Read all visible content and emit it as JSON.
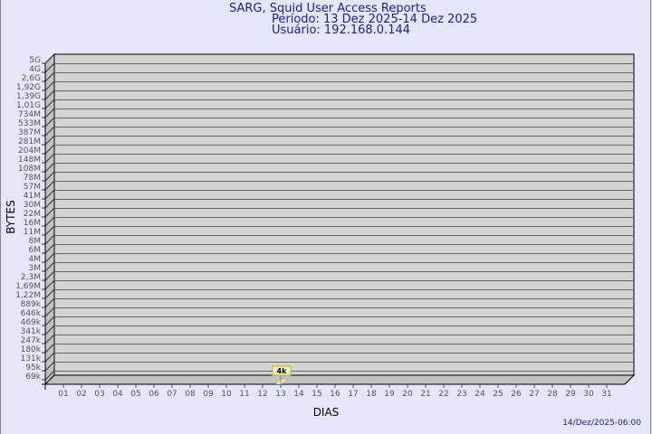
{
  "chart_data": {
    "type": "bar",
    "title": "SARG, Squid User Access Reports",
    "subtitle": [
      "Período: 13 Dez 2025-14 Dez 2025",
      "Usuário: 192.168.0.144"
    ],
    "xlabel": "DIAS",
    "ylabel": "BYTES",
    "y_scale": "log",
    "categories": [
      "01",
      "02",
      "03",
      "04",
      "05",
      "06",
      "07",
      "08",
      "09",
      "10",
      "11",
      "12",
      "13",
      "14",
      "15",
      "16",
      "17",
      "18",
      "19",
      "20",
      "21",
      "22",
      "23",
      "24",
      "25",
      "26",
      "27",
      "28",
      "29",
      "30",
      "31"
    ],
    "yticks": [
      "5G",
      "4G",
      "2,6G",
      "1,92G",
      "1,39G",
      "1,01G",
      "734M",
      "533M",
      "387M",
      "281M",
      "204M",
      "148M",
      "108M",
      "78M",
      "57M",
      "41M",
      "30M",
      "22M",
      "16M",
      "11M",
      "8M",
      "6M",
      "4M",
      "3M",
      "2,3M",
      "1,69M",
      "1,22M",
      "889k",
      "646k",
      "469k",
      "341k",
      "247k",
      "180k",
      "131k",
      "95k",
      "69k"
    ],
    "bars": [
      {
        "category": "13",
        "value": 4000,
        "label": "4k"
      }
    ],
    "grid": true,
    "colors": {
      "background": "#e6e6fa",
      "plot": "#d3d3d3",
      "bar": "#f5e38a",
      "title": "#1c1ca0"
    }
  },
  "footer": {
    "timestamp": "14/Dez/2025-06:00"
  }
}
